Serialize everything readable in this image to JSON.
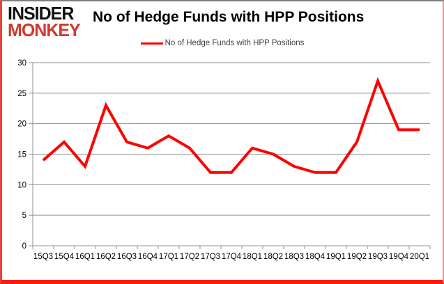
{
  "logo": {
    "line1": "INSIDER",
    "line2": "MONKEY"
  },
  "header": {
    "title": "No of Hedge Funds with HPP Positions"
  },
  "legend": {
    "label": "No of Hedge Funds with HPP Positions"
  },
  "colors": {
    "line": "#ff0000",
    "grid": "#909090",
    "axis": "#909090",
    "axis_text": "#000000",
    "logo_red": "#d0392e",
    "frame_red": "#fb1d10"
  },
  "chart_data": {
    "type": "line",
    "title": "No of Hedge Funds with HPP Positions",
    "xlabel": "",
    "ylabel": "",
    "categories": [
      "15Q3",
      "15Q4",
      "16Q1",
      "16Q2",
      "16Q3",
      "16Q4",
      "17Q1",
      "17Q2",
      "17Q3",
      "17Q4",
      "18Q1",
      "18Q2",
      "18Q3",
      "18Q4",
      "19Q1",
      "19Q2",
      "19Q3",
      "19Q4",
      "20Q1"
    ],
    "series": [
      {
        "name": "No of Hedge Funds with HPP Positions",
        "values": [
          14,
          17,
          13,
          23,
          17,
          16,
          18,
          16,
          12,
          12,
          16,
          15,
          13,
          12,
          12,
          17,
          27,
          19,
          19
        ]
      }
    ],
    "ylim": [
      0,
      30
    ],
    "yticks": [
      0,
      5,
      10,
      15,
      20,
      25,
      30
    ],
    "grid": true,
    "legend_position": "top-center"
  }
}
